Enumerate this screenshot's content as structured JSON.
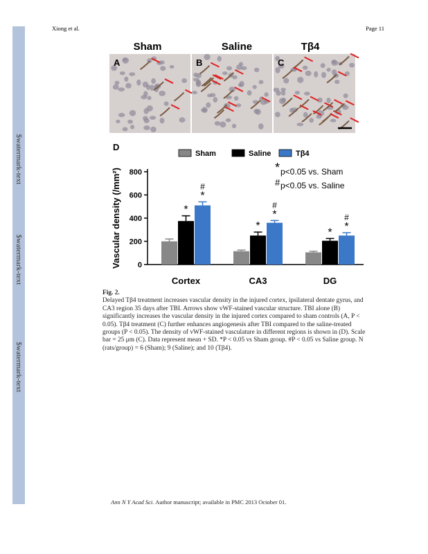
{
  "header": {
    "author": "Xiong et al.",
    "page": "Page 11"
  },
  "watermark": [
    "$watermark-text",
    "$watermark-text",
    "$watermark-text"
  ],
  "figure": {
    "panels": [
      {
        "letter": "A",
        "title": "Sham"
      },
      {
        "letter": "B",
        "title": "Saline"
      },
      {
        "letter": "C",
        "title": "Tβ4"
      }
    ],
    "chart_letter": "D"
  },
  "chart_data": {
    "type": "bar",
    "ylabel": "Vascular density (/mm²)",
    "categories": [
      "Cortex",
      "CA3",
      "DG"
    ],
    "series": [
      {
        "name": "Sham",
        "color": "#888888",
        "values": [
          200,
          115,
          105
        ],
        "errors": [
          20,
          10,
          10
        ]
      },
      {
        "name": "Saline",
        "color": "#000000",
        "values": [
          375,
          250,
          205
        ],
        "errors": [
          45,
          30,
          20
        ],
        "significance": [
          [
            "*"
          ],
          [
            "*"
          ],
          [
            "*"
          ]
        ]
      },
      {
        "name": "Tβ4",
        "color": "#3b78c8",
        "values": [
          510,
          360,
          250
        ],
        "errors": [
          30,
          20,
          25
        ],
        "significance": [
          [
            "*",
            "#"
          ],
          [
            "*",
            "#"
          ],
          [
            "*",
            "#"
          ]
        ]
      }
    ],
    "notes": [
      {
        "symbol": "*",
        "text": "p<0.05 vs. Sham"
      },
      {
        "symbol": "#",
        "text": "p<0.05 vs. Saline"
      }
    ],
    "ylim": [
      0,
      800
    ],
    "yticks": [
      0,
      200,
      400,
      600,
      800
    ]
  },
  "caption": {
    "label": "Fig. 2.",
    "text": "Delayed Tβ4 treatment increases vascular density in the injured cortex, ipsilateral dentate gyrus, and CA3 region 35 days after TBI. Arrows show vWF-stained vascular structure. TBI alone (B) significantly increases the vascular density in the injured cortex compared to sham controls (A, P < 0.05). Tβ4 treatment (C) further enhances angiogenesis after TBI compared to the saline-treated groups (P < 0.05). The density of vWF-stained vasculature in different regions is shown in (D). Scale bar = 25 μm (C). Data represent mean + SD. *P < 0.05 vs Sham group. #P < 0.05 vs Saline group. N (rats/group) = 6 (Sham); 9 (Saline); and 10 (Tβ4)."
  },
  "footer": {
    "journal": "Ann N Y Acad Sci.",
    "text": "Author manuscript; available in PMC 2013 October 01."
  }
}
